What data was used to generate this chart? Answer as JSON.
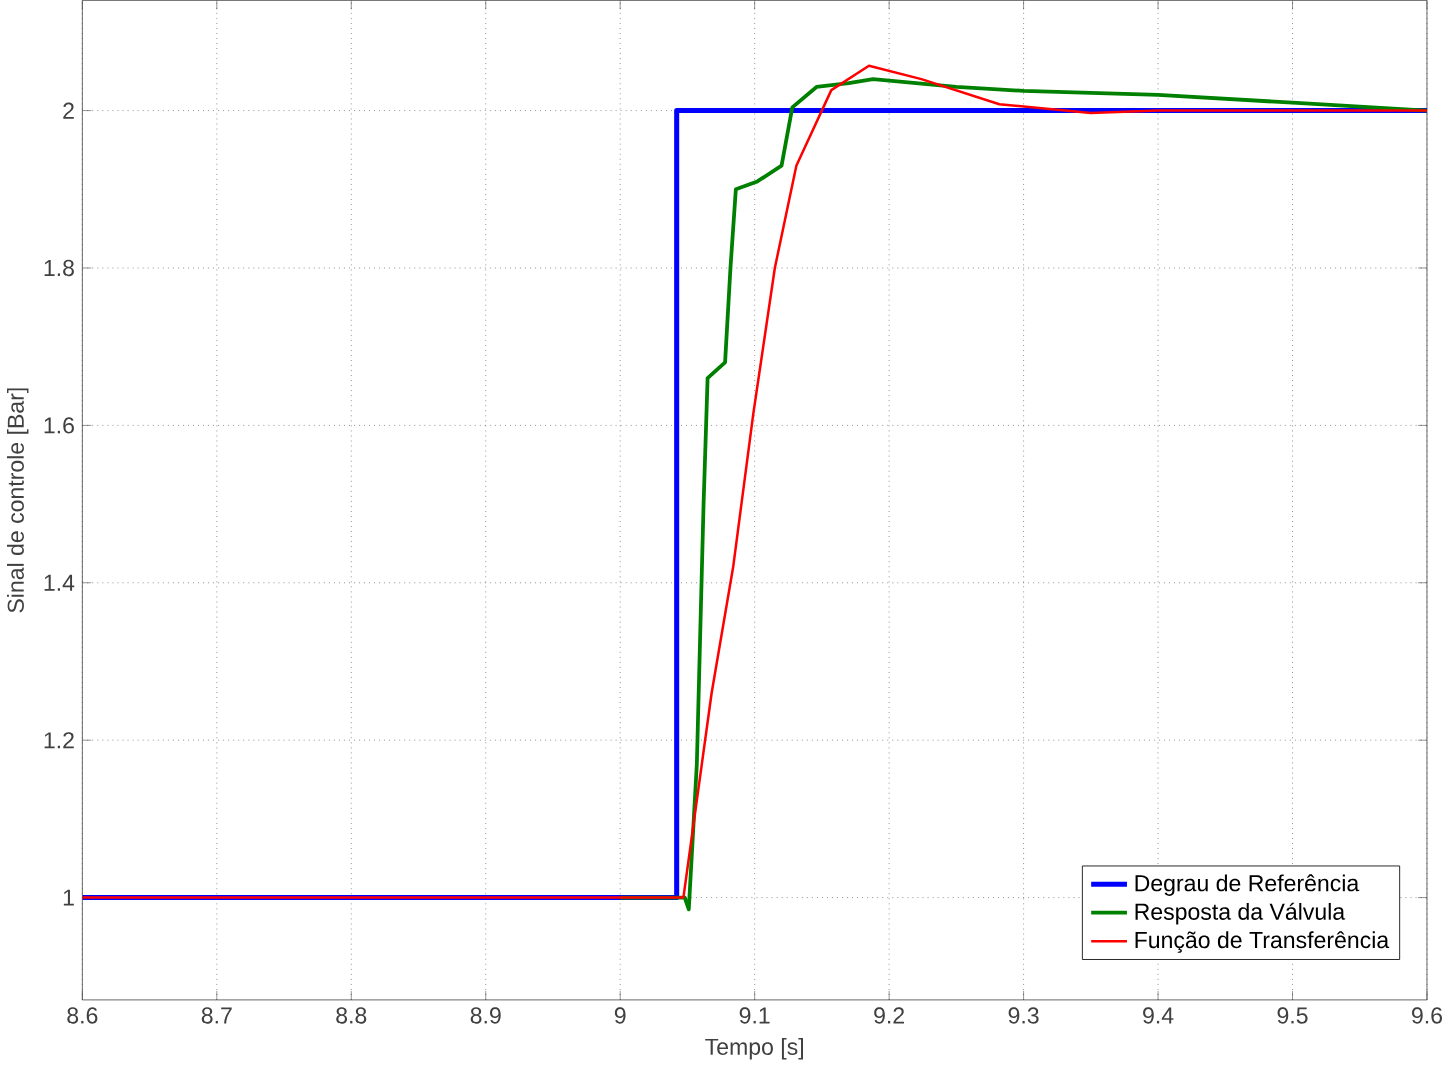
{
  "chart_data": {
    "type": "line",
    "xlabel": "Tempo [s]",
    "ylabel": "Sinal de controle [Bar]",
    "xlim": [
      8.6,
      9.6
    ],
    "ylim": [
      0.87,
      2.14
    ],
    "xticks": [
      8.6,
      8.7,
      8.8,
      8.9,
      9,
      9.1,
      9.2,
      9.3,
      9.4,
      9.5,
      9.6
    ],
    "yticks": [
      1,
      1.2,
      1.4,
      1.6,
      1.8,
      2
    ],
    "grid": true,
    "legend": "bottom right",
    "marker": "none",
    "line_style": "solid",
    "series": [
      {
        "name": "Degrau de Referência",
        "color": "#0000ff",
        "x": [
          8.6,
          9.042,
          9.042,
          9.6
        ],
        "values": [
          1,
          1,
          2,
          2
        ]
      },
      {
        "name": "Resposta da Válvula",
        "color": "#008000",
        "x": [
          9.0,
          9.04,
          9.048,
          9.051,
          9.057,
          9.062,
          9.065,
          9.078,
          9.082,
          9.086,
          9.102,
          9.12,
          9.128,
          9.146,
          9.17,
          9.188,
          9.25,
          9.3,
          9.4,
          9.5,
          9.6
        ],
        "values": [
          1,
          1,
          1,
          0.985,
          1.17,
          1.5,
          1.66,
          1.68,
          1.8,
          1.9,
          1.91,
          1.93,
          2.004,
          2.03,
          2.035,
          2.04,
          2.03,
          2.025,
          2.02,
          2.01,
          2.0
        ]
      },
      {
        "name": "Função de Transferência",
        "color": "#ff0000",
        "x": [
          8.6,
          8.7,
          8.8,
          8.9,
          9.0,
          9.047,
          9.068,
          9.084,
          9.099,
          9.115,
          9.131,
          9.157,
          9.185,
          9.224,
          9.282,
          9.35,
          9.4,
          9.5,
          9.6
        ],
        "values": [
          1,
          1,
          1,
          1,
          1,
          1.0,
          1.26,
          1.42,
          1.615,
          1.8,
          1.93,
          2.026,
          2.057,
          2.04,
          2.008,
          1.997,
          2.0,
          2.0,
          2.0
        ]
      }
    ]
  }
}
